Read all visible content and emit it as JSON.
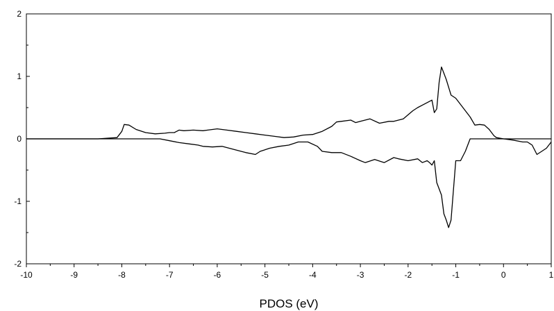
{
  "chart_data": {
    "type": "line",
    "title": "",
    "xlabel": "PDOS (eV)",
    "ylabel": "",
    "xlim": [
      -10,
      1
    ],
    "ylim": [
      -2,
      2
    ],
    "x_ticks": [
      -10,
      -9,
      -8,
      -7,
      -6,
      -5,
      -4,
      -3,
      -2,
      -1,
      0,
      1
    ],
    "x_tick_labels": [
      "-10",
      "-9",
      "-8",
      "-7",
      "-6",
      "-5",
      "-4",
      "-3",
      "-2",
      "-1",
      "0",
      "1"
    ],
    "y_ticks": [
      -2,
      -1,
      0,
      1,
      2
    ],
    "y_tick_labels": [
      "-2",
      "-1",
      "0",
      "1",
      "2"
    ],
    "grid": false,
    "legend": "none",
    "line_color": "#000000",
    "series": [
      {
        "x": [
          -10,
          -8.5,
          -8.1,
          -8.0,
          -7.95,
          -7.85,
          -7.7,
          -7.5,
          -7.3,
          -7.1,
          -7.0,
          -6.9,
          -6.8,
          -6.7,
          -6.5,
          -6.3,
          -6.2,
          -6.0,
          -5.8,
          -5.6,
          -5.4,
          -5.2,
          -5.0,
          -4.8,
          -4.6,
          -4.4,
          -4.2,
          -4.0,
          -3.8,
          -3.6,
          -3.5,
          -3.4,
          -3.2,
          -3.1,
          -3.0,
          -2.8,
          -2.6,
          -2.4,
          -2.3,
          -2.1,
          -1.9,
          -1.8,
          -1.7,
          -1.6,
          -1.5,
          -1.45,
          -1.4,
          -1.35,
          -1.3,
          -1.25,
          -1.2,
          -1.1,
          -1.0,
          -0.8,
          -0.7,
          -0.6,
          -0.5,
          -0.4,
          -0.3,
          -0.2,
          -0.15,
          0.0,
          0.3,
          0.5,
          0.7,
          0.9,
          1.0
        ],
        "y": [
          0.0,
          0.0,
          0.02,
          0.12,
          0.23,
          0.22,
          0.15,
          0.1,
          0.08,
          0.09,
          0.1,
          0.1,
          0.14,
          0.13,
          0.14,
          0.13,
          0.14,
          0.16,
          0.14,
          0.12,
          0.1,
          0.08,
          0.06,
          0.04,
          0.02,
          0.03,
          0.06,
          0.07,
          0.12,
          0.2,
          0.27,
          0.28,
          0.3,
          0.26,
          0.28,
          0.32,
          0.25,
          0.28,
          0.28,
          0.32,
          0.45,
          0.5,
          0.54,
          0.58,
          0.62,
          0.42,
          0.48,
          0.9,
          1.15,
          1.05,
          0.95,
          0.7,
          0.65,
          0.45,
          0.35,
          0.22,
          0.23,
          0.22,
          0.15,
          0.05,
          0.02,
          0.0,
          0.0,
          0.0,
          0.0,
          0.0,
          0.0
        ]
      },
      {
        "x": [
          -10,
          -7.2,
          -7.0,
          -6.8,
          -6.6,
          -6.4,
          -6.3,
          -6.1,
          -5.9,
          -5.7,
          -5.5,
          -5.4,
          -5.2,
          -5.1,
          -4.9,
          -4.7,
          -4.5,
          -4.3,
          -4.1,
          -3.9,
          -3.8,
          -3.6,
          -3.4,
          -3.2,
          -3.0,
          -2.9,
          -2.7,
          -2.5,
          -2.3,
          -2.2,
          -2.0,
          -1.8,
          -1.7,
          -1.6,
          -1.55,
          -1.5,
          -1.45,
          -1.4,
          -1.3,
          -1.25,
          -1.2,
          -1.15,
          -1.1,
          -1.0,
          -0.9,
          -0.8,
          -0.7,
          -0.5,
          -0.3,
          -0.1,
          0.0,
          0.2,
          0.4,
          0.5,
          0.6,
          0.7,
          0.8,
          0.9,
          1.0
        ],
        "y": [
          0.0,
          0.0,
          -0.03,
          -0.06,
          -0.08,
          -0.1,
          -0.12,
          -0.13,
          -0.12,
          -0.16,
          -0.2,
          -0.22,
          -0.25,
          -0.2,
          -0.15,
          -0.12,
          -0.1,
          -0.05,
          -0.05,
          -0.12,
          -0.2,
          -0.22,
          -0.22,
          -0.28,
          -0.35,
          -0.38,
          -0.33,
          -0.38,
          -0.3,
          -0.32,
          -0.35,
          -0.32,
          -0.38,
          -0.35,
          -0.38,
          -0.42,
          -0.35,
          -0.7,
          -0.9,
          -1.2,
          -1.3,
          -1.42,
          -1.3,
          -0.35,
          -0.35,
          -0.2,
          0.0,
          0.0,
          0.0,
          0.0,
          0.0,
          -0.02,
          -0.05,
          -0.05,
          -0.1,
          -0.25,
          -0.2,
          -0.15,
          -0.05
        ]
      }
    ]
  }
}
